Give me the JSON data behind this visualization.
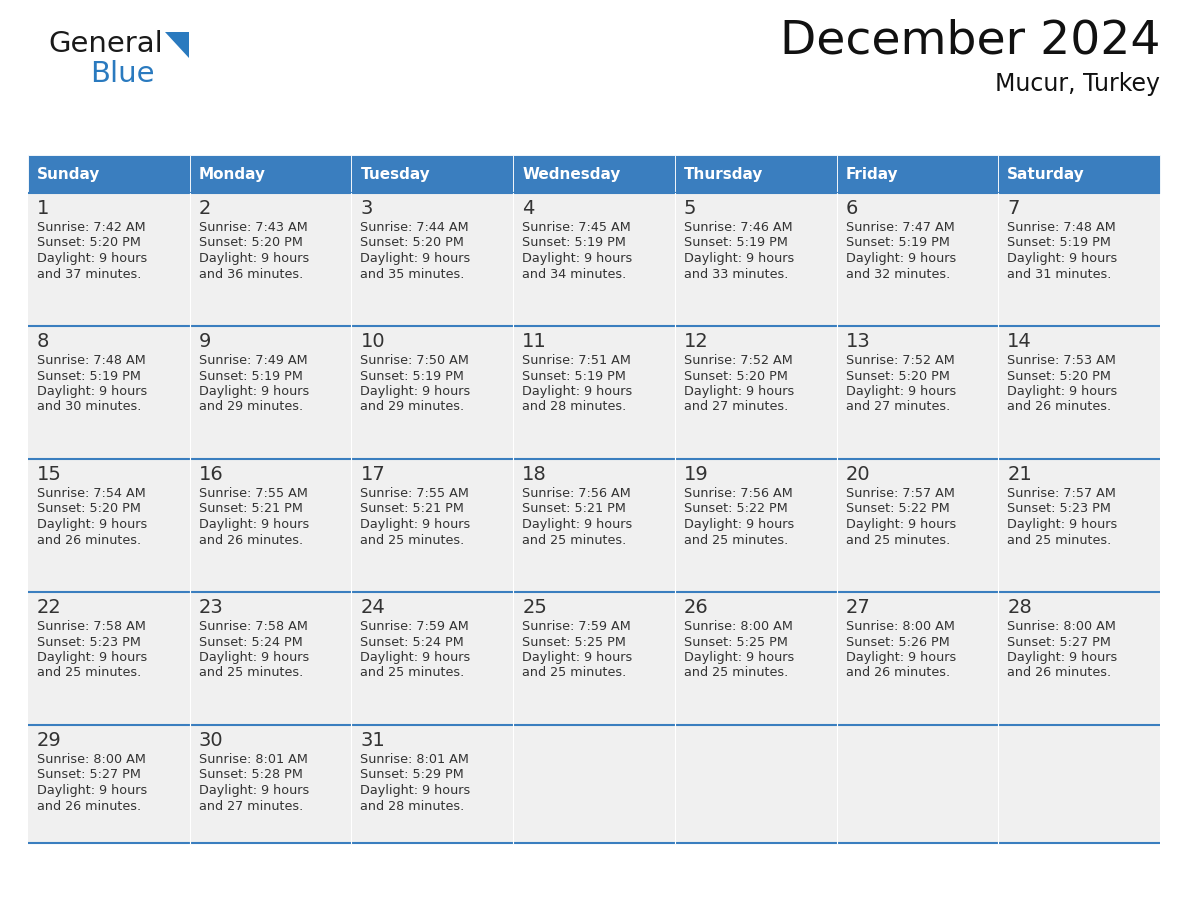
{
  "title": "December 2024",
  "subtitle": "Mucur, Turkey",
  "header_color": "#3a7ebf",
  "header_text_color": "#ffffff",
  "day_names": [
    "Sunday",
    "Monday",
    "Tuesday",
    "Wednesday",
    "Thursday",
    "Friday",
    "Saturday"
  ],
  "background_color": "#ffffff",
  "cell_bg_color": "#f0f0f0",
  "line_color": "#3a7ebf",
  "day_number_color": "#333333",
  "cell_text_color": "#333333",
  "logo_general_color": "#1a1a1a",
  "logo_blue_color": "#2a7abf",
  "logo_triangle_color": "#2a7abf",
  "calendar": [
    [
      {
        "day": 1,
        "sunrise": "7:42 AM",
        "sunset": "5:20 PM",
        "daylight_h": "9 hours",
        "daylight_m": "37 minutes"
      },
      {
        "day": 2,
        "sunrise": "7:43 AM",
        "sunset": "5:20 PM",
        "daylight_h": "9 hours",
        "daylight_m": "36 minutes"
      },
      {
        "day": 3,
        "sunrise": "7:44 AM",
        "sunset": "5:20 PM",
        "daylight_h": "9 hours",
        "daylight_m": "35 minutes"
      },
      {
        "day": 4,
        "sunrise": "7:45 AM",
        "sunset": "5:19 PM",
        "daylight_h": "9 hours",
        "daylight_m": "34 minutes"
      },
      {
        "day": 5,
        "sunrise": "7:46 AM",
        "sunset": "5:19 PM",
        "daylight_h": "9 hours",
        "daylight_m": "33 minutes"
      },
      {
        "day": 6,
        "sunrise": "7:47 AM",
        "sunset": "5:19 PM",
        "daylight_h": "9 hours",
        "daylight_m": "32 minutes"
      },
      {
        "day": 7,
        "sunrise": "7:48 AM",
        "sunset": "5:19 PM",
        "daylight_h": "9 hours",
        "daylight_m": "31 minutes"
      }
    ],
    [
      {
        "day": 8,
        "sunrise": "7:48 AM",
        "sunset": "5:19 PM",
        "daylight_h": "9 hours",
        "daylight_m": "30 minutes"
      },
      {
        "day": 9,
        "sunrise": "7:49 AM",
        "sunset": "5:19 PM",
        "daylight_h": "9 hours",
        "daylight_m": "29 minutes"
      },
      {
        "day": 10,
        "sunrise": "7:50 AM",
        "sunset": "5:19 PM",
        "daylight_h": "9 hours",
        "daylight_m": "29 minutes"
      },
      {
        "day": 11,
        "sunrise": "7:51 AM",
        "sunset": "5:19 PM",
        "daylight_h": "9 hours",
        "daylight_m": "28 minutes"
      },
      {
        "day": 12,
        "sunrise": "7:52 AM",
        "sunset": "5:20 PM",
        "daylight_h": "9 hours",
        "daylight_m": "27 minutes"
      },
      {
        "day": 13,
        "sunrise": "7:52 AM",
        "sunset": "5:20 PM",
        "daylight_h": "9 hours",
        "daylight_m": "27 minutes"
      },
      {
        "day": 14,
        "sunrise": "7:53 AM",
        "sunset": "5:20 PM",
        "daylight_h": "9 hours",
        "daylight_m": "26 minutes"
      }
    ],
    [
      {
        "day": 15,
        "sunrise": "7:54 AM",
        "sunset": "5:20 PM",
        "daylight_h": "9 hours",
        "daylight_m": "26 minutes"
      },
      {
        "day": 16,
        "sunrise": "7:55 AM",
        "sunset": "5:21 PM",
        "daylight_h": "9 hours",
        "daylight_m": "26 minutes"
      },
      {
        "day": 17,
        "sunrise": "7:55 AM",
        "sunset": "5:21 PM",
        "daylight_h": "9 hours",
        "daylight_m": "25 minutes"
      },
      {
        "day": 18,
        "sunrise": "7:56 AM",
        "sunset": "5:21 PM",
        "daylight_h": "9 hours",
        "daylight_m": "25 minutes"
      },
      {
        "day": 19,
        "sunrise": "7:56 AM",
        "sunset": "5:22 PM",
        "daylight_h": "9 hours",
        "daylight_m": "25 minutes"
      },
      {
        "day": 20,
        "sunrise": "7:57 AM",
        "sunset": "5:22 PM",
        "daylight_h": "9 hours",
        "daylight_m": "25 minutes"
      },
      {
        "day": 21,
        "sunrise": "7:57 AM",
        "sunset": "5:23 PM",
        "daylight_h": "9 hours",
        "daylight_m": "25 minutes"
      }
    ],
    [
      {
        "day": 22,
        "sunrise": "7:58 AM",
        "sunset": "5:23 PM",
        "daylight_h": "9 hours",
        "daylight_m": "25 minutes"
      },
      {
        "day": 23,
        "sunrise": "7:58 AM",
        "sunset": "5:24 PM",
        "daylight_h": "9 hours",
        "daylight_m": "25 minutes"
      },
      {
        "day": 24,
        "sunrise": "7:59 AM",
        "sunset": "5:24 PM",
        "daylight_h": "9 hours",
        "daylight_m": "25 minutes"
      },
      {
        "day": 25,
        "sunrise": "7:59 AM",
        "sunset": "5:25 PM",
        "daylight_h": "9 hours",
        "daylight_m": "25 minutes"
      },
      {
        "day": 26,
        "sunrise": "8:00 AM",
        "sunset": "5:25 PM",
        "daylight_h": "9 hours",
        "daylight_m": "25 minutes"
      },
      {
        "day": 27,
        "sunrise": "8:00 AM",
        "sunset": "5:26 PM",
        "daylight_h": "9 hours",
        "daylight_m": "26 minutes"
      },
      {
        "day": 28,
        "sunrise": "8:00 AM",
        "sunset": "5:27 PM",
        "daylight_h": "9 hours",
        "daylight_m": "26 minutes"
      }
    ],
    [
      {
        "day": 29,
        "sunrise": "8:00 AM",
        "sunset": "5:27 PM",
        "daylight_h": "9 hours",
        "daylight_m": "26 minutes"
      },
      {
        "day": 30,
        "sunrise": "8:01 AM",
        "sunset": "5:28 PM",
        "daylight_h": "9 hours",
        "daylight_m": "27 minutes"
      },
      {
        "day": 31,
        "sunrise": "8:01 AM",
        "sunset": "5:29 PM",
        "daylight_h": "9 hours",
        "daylight_m": "28 minutes"
      },
      null,
      null,
      null,
      null
    ]
  ],
  "figwidth": 11.88,
  "figheight": 9.18,
  "dpi": 100
}
